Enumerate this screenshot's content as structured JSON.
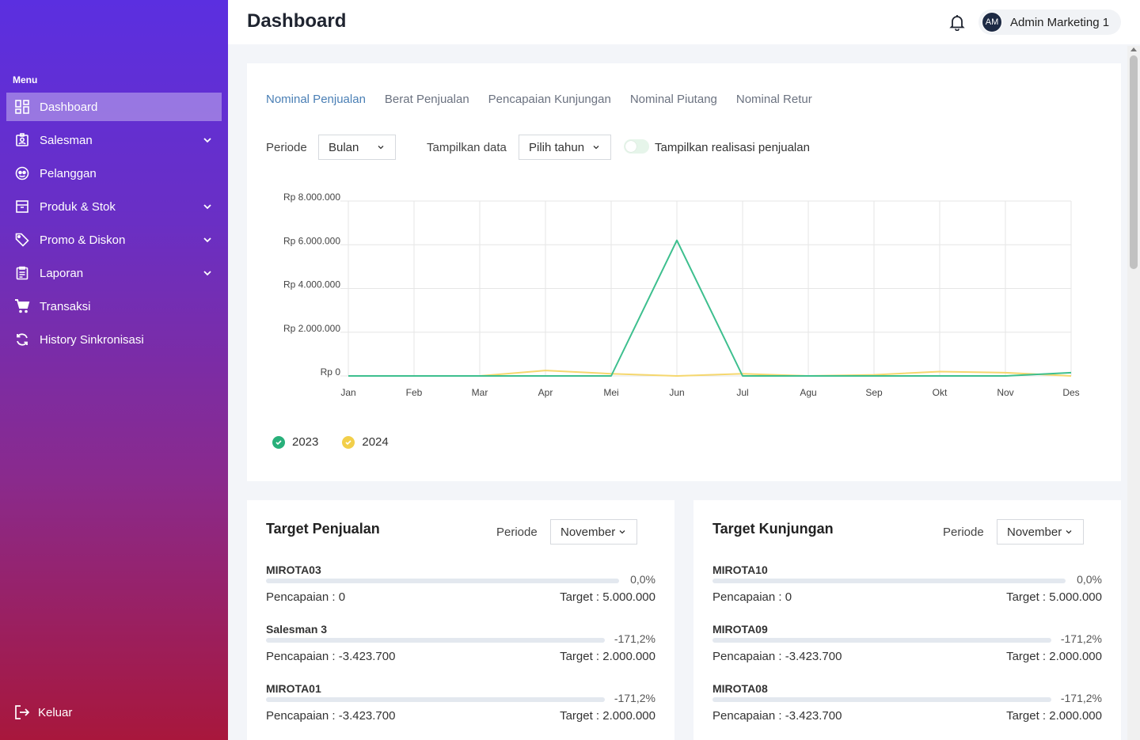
{
  "sidebar": {
    "menu_heading": "Menu",
    "items": [
      {
        "label": "Dashboard",
        "icon": "dashboard-icon",
        "active": true,
        "has_children": false
      },
      {
        "label": "Salesman",
        "icon": "badge-icon",
        "active": false,
        "has_children": true
      },
      {
        "label": "Pelanggan",
        "icon": "customer-icon",
        "active": false,
        "has_children": false
      },
      {
        "label": "Produk & Stok",
        "icon": "box-icon",
        "active": false,
        "has_children": true
      },
      {
        "label": "Promo & Diskon",
        "icon": "tag-icon",
        "active": false,
        "has_children": true
      },
      {
        "label": "Laporan",
        "icon": "clipboard-icon",
        "active": false,
        "has_children": true
      },
      {
        "label": "Transaksi",
        "icon": "cart-icon",
        "active": false,
        "has_children": false
      },
      {
        "label": "History Sinkronisasi",
        "icon": "sync-icon",
        "active": false,
        "has_children": false
      }
    ],
    "logout_label": "Keluar"
  },
  "header": {
    "title": "Dashboard",
    "user_initials": "AM",
    "user_name": "Admin Marketing 1"
  },
  "chart_card": {
    "tabs": [
      "Nominal Penjualan",
      "Berat Penjualan",
      "Pencapaian Kunjungan",
      "Nominal Piutang",
      "Nominal Retur"
    ],
    "active_tab": 0,
    "periode_label": "Periode",
    "periode_value": "Bulan",
    "tampilkan_label": "Tampilkan data",
    "tahun_value": "Pilih tahun",
    "toggle_label": "Tampilkan realisasi penjualan"
  },
  "chart_data": {
    "type": "line",
    "categories": [
      "Jan",
      "Feb",
      "Mar",
      "Apr",
      "Mei",
      "Jun",
      "Jul",
      "Agu",
      "Sep",
      "Okt",
      "Nov",
      "Des"
    ],
    "y_ticks": [
      "Rp 0",
      "Rp 2.000.000",
      "Rp 4.000.000",
      "Rp 6.000.000",
      "Rp 8.000.000"
    ],
    "ylim": [
      0,
      8000000
    ],
    "grid": true,
    "legend_position": "bottom-left",
    "series": [
      {
        "name": "2023",
        "color": "#3dbf8e",
        "values": [
          0,
          0,
          0,
          0,
          0,
          6200000,
          0,
          0,
          0,
          0,
          0,
          150000
        ]
      },
      {
        "name": "2024",
        "color": "#f5d76e",
        "values": [
          0,
          0,
          0,
          250000,
          100000,
          0,
          100000,
          0,
          50000,
          200000,
          150000,
          0
        ]
      }
    ]
  },
  "target_penjualan": {
    "title": "Target Penjualan",
    "periode_label": "Periode",
    "periode_value": "November",
    "rows": [
      {
        "name": "MIROTA03",
        "percent": "0,0%",
        "achieved": "Pencapaian : 0",
        "target": "Target : 5.000.000"
      },
      {
        "name": "Salesman 3",
        "percent": "-171,2%",
        "achieved": "Pencapaian : -3.423.700",
        "target": "Target : 2.000.000"
      },
      {
        "name": "MIROTA01",
        "percent": "-171,2%",
        "achieved": "Pencapaian : -3.423.700",
        "target": "Target : 2.000.000"
      }
    ]
  },
  "target_kunjungan": {
    "title": "Target Kunjungan",
    "periode_label": "Periode",
    "periode_value": "November",
    "rows": [
      {
        "name": "MIROTA10",
        "percent": "0,0%",
        "achieved": "Pencapaian : 0",
        "target": "Target : 5.000.000"
      },
      {
        "name": "MIROTA09",
        "percent": "-171,2%",
        "achieved": "Pencapaian : -3.423.700",
        "target": "Target : 2.000.000"
      },
      {
        "name": "MIROTA08",
        "percent": "-171,2%",
        "achieved": "Pencapaian : -3.423.700",
        "target": "Target : 2.000.000"
      }
    ]
  }
}
